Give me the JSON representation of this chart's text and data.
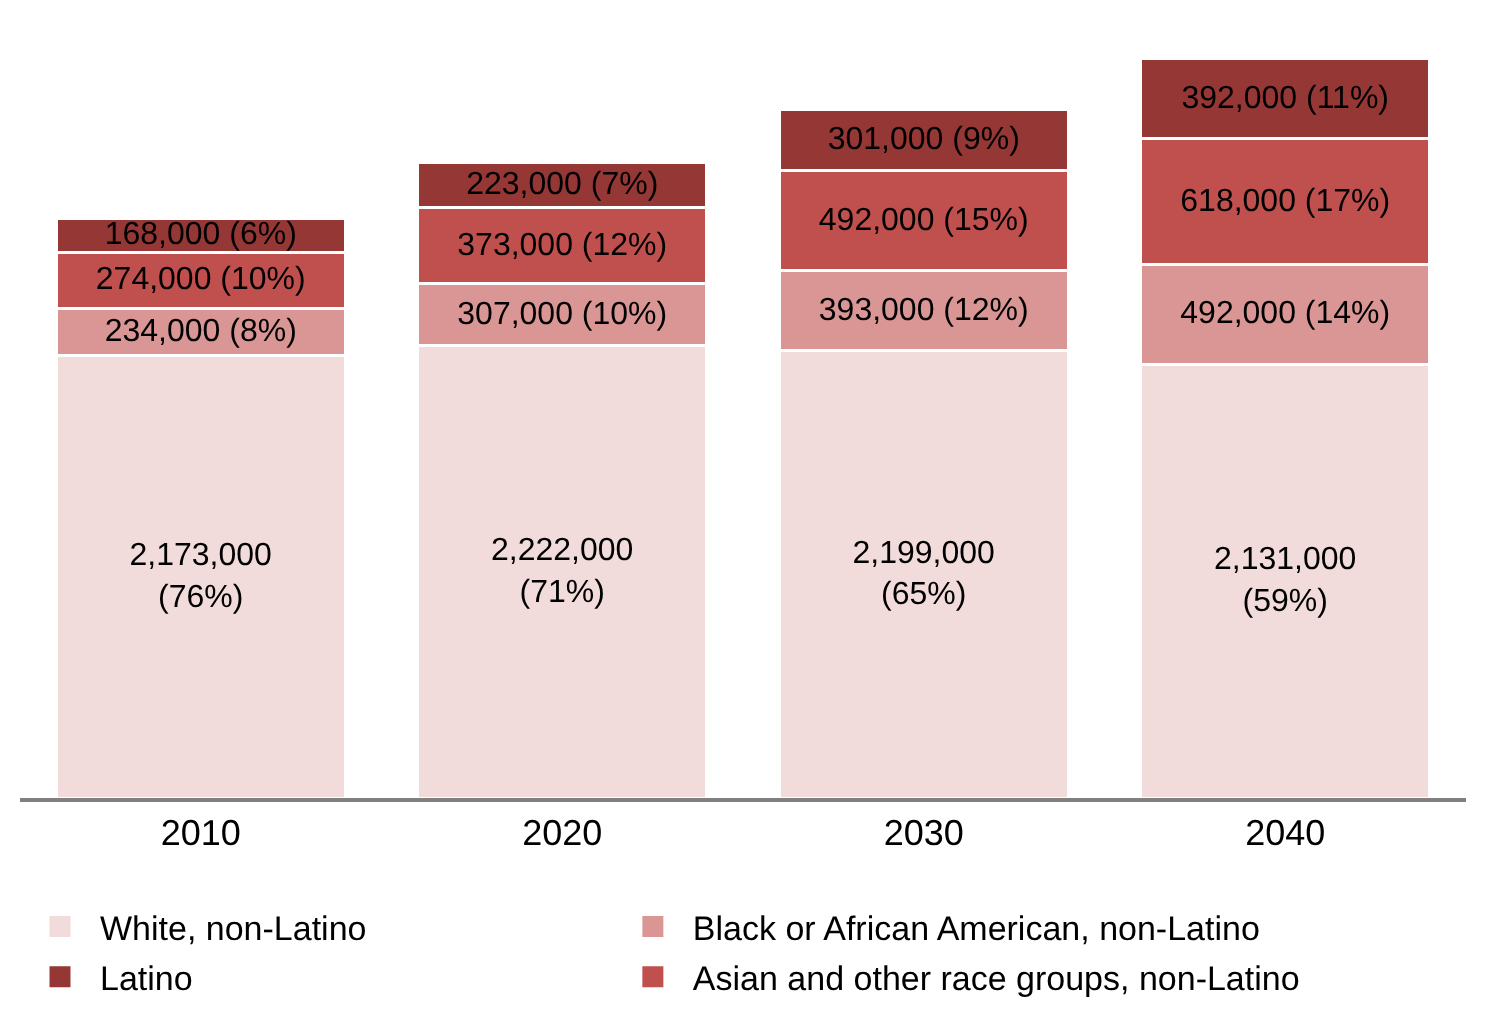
{
  "chart_data": {
    "type": "bar",
    "stacked": true,
    "tick_labels": "x",
    "categories": [
      "2010",
      "2020",
      "2030",
      "2040"
    ],
    "legend": "bottom",
    "series": [
      {
        "name": "White, non-Latino",
        "color": "#f2dcdb",
        "values": [
          2173000,
          2222000,
          2199000,
          2131000
        ],
        "value_labels": [
          "2,173,000\n(76%)",
          "2,222,000\n(71%)",
          "2,199,000\n(65%)",
          "2,131,000\n(59%)"
        ]
      },
      {
        "name": "Black or African American, non-Latino",
        "color": "#d99694",
        "values": [
          234000,
          307000,
          393000,
          492000
        ],
        "value_labels": [
          "234,000 (8%)",
          "307,000 (10%)",
          "393,000 (12%)",
          "492,000 (14%)"
        ]
      },
      {
        "name": "Asian and other race groups, non-Latino",
        "color": "#c0504d",
        "values": [
          274000,
          373000,
          492000,
          618000
        ],
        "value_labels": [
          "274,000 (10%)",
          "373,000 (12%)",
          "492,000 (15%)",
          "618,000 (17%)"
        ]
      },
      {
        "name": "Latino",
        "color": "#953735",
        "values": [
          168000,
          223000,
          301000,
          392000
        ],
        "value_labels": [
          "168,000 (6%)",
          "223,000 (7%)",
          "301,000 (9%)",
          "392,000 (11%)"
        ]
      }
    ]
  }
}
